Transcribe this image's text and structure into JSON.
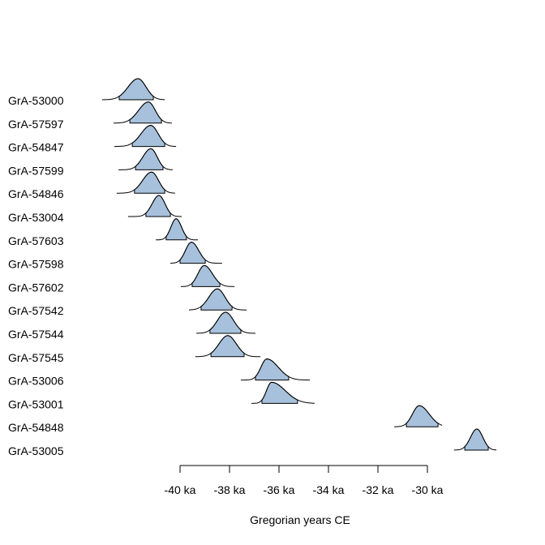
{
  "chart_data": {
    "type": "density",
    "title": "",
    "xlabel": "Gregorian years CE",
    "ylabel": "",
    "xlim": [
      -44,
      -26.5
    ],
    "x_unit": "ka",
    "x_ticks": [
      -40,
      -38,
      -36,
      -34,
      -32,
      -30
    ],
    "x_tick_labels": [
      "-40 ka",
      "-38 ka",
      "-36 ka",
      "-34 ka",
      "-32 ka",
      "-30 ka"
    ],
    "fill_color": "#a7c1dc",
    "line_color": "#000000",
    "series": [
      {
        "label": "GrA-53000",
        "peak": -41.7,
        "hpd": [
          -42.46,
          -41.08
        ],
        "range": [
          -43.15,
          -40.62
        ]
      },
      {
        "label": "GrA-57597",
        "peak": -41.28,
        "hpd": [
          -42.03,
          -40.75
        ],
        "range": [
          -42.69,
          -40.33
        ]
      },
      {
        "label": "GrA-54847",
        "peak": -41.18,
        "hpd": [
          -41.93,
          -40.62
        ],
        "range": [
          -42.66,
          -40.16
        ]
      },
      {
        "label": "GrA-57599",
        "peak": -41.18,
        "hpd": [
          -41.8,
          -40.69
        ],
        "range": [
          -42.49,
          -40.3
        ]
      },
      {
        "label": "GrA-54846",
        "peak": -41.15,
        "hpd": [
          -41.84,
          -40.62
        ],
        "range": [
          -42.56,
          -40.2
        ]
      },
      {
        "label": "GrA-53004",
        "peak": -40.85,
        "hpd": [
          -41.38,
          -40.39
        ],
        "range": [
          -42.1,
          -39.93
        ]
      },
      {
        "label": "GrA-57603",
        "peak": -40.16,
        "hpd": [
          -40.56,
          -39.74
        ],
        "range": [
          -40.98,
          -39.28
        ]
      },
      {
        "label": "GrA-57598",
        "peak": -39.54,
        "hpd": [
          -40.0,
          -38.98
        ],
        "range": [
          -40.39,
          -38.3
        ]
      },
      {
        "label": "GrA-57602",
        "peak": -39.02,
        "hpd": [
          -39.51,
          -38.39
        ],
        "range": [
          -39.97,
          -37.8
        ]
      },
      {
        "label": "GrA-57542",
        "peak": -38.49,
        "hpd": [
          -39.15,
          -37.9
        ],
        "range": [
          -39.64,
          -37.31
        ]
      },
      {
        "label": "GrA-57544",
        "peak": -38.16,
        "hpd": [
          -38.79,
          -37.54
        ],
        "range": [
          -39.34,
          -36.95
        ]
      },
      {
        "label": "GrA-57545",
        "peak": -38.07,
        "hpd": [
          -38.75,
          -37.41
        ],
        "range": [
          -39.38,
          -36.75
        ]
      },
      {
        "label": "GrA-53006",
        "peak": -36.49,
        "hpd": [
          -36.95,
          -35.61
        ],
        "range": [
          -37.54,
          -34.75
        ]
      },
      {
        "label": "GrA-53001",
        "peak": -36.3,
        "hpd": [
          -36.69,
          -35.25
        ],
        "range": [
          -37.11,
          -34.56
        ]
      },
      {
        "label": "GrA-54848",
        "peak": -30.33,
        "hpd": [
          -30.85,
          -29.57
        ],
        "range": [
          -31.34,
          -29.41
        ]
      },
      {
        "label": "GrA-53005",
        "peak": -28.0,
        "hpd": [
          -28.49,
          -27.54
        ],
        "range": [
          -28.92,
          -27.21
        ]
      }
    ]
  }
}
